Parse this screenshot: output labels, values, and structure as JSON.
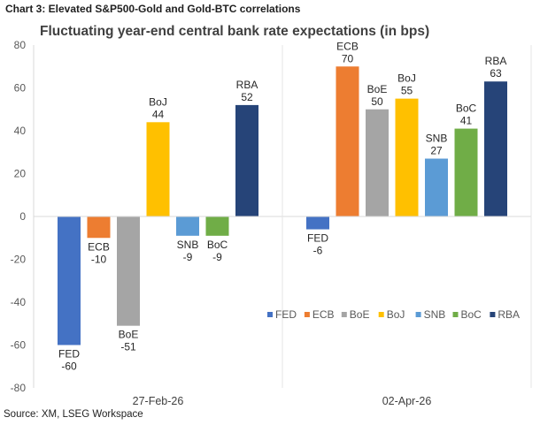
{
  "header": {
    "caption": "Chart 3: Elevated S&P500-Gold and Gold-BTC correlations"
  },
  "footer": {
    "source": "Source: XM, LSEG Workspace"
  },
  "chart_data": {
    "type": "bar",
    "title": "Fluctuating year-end central bank rate expectations (in bps)",
    "xlabel": "",
    "ylabel": "",
    "ylim": [
      -80,
      80
    ],
    "yticks": [
      80,
      60,
      40,
      20,
      0,
      -20,
      -40,
      -60,
      -80
    ],
    "grid": false,
    "legend_position": "lower-right",
    "categories": [
      "27-Feb-26",
      "02-Apr-26"
    ],
    "series": [
      {
        "name": "FED",
        "color": "#4472C4",
        "values": [
          -60,
          -6
        ]
      },
      {
        "name": "ECB",
        "color": "#ED7D31",
        "values": [
          -10,
          70
        ]
      },
      {
        "name": "BoE",
        "color": "#A5A5A5",
        "values": [
          -51,
          50
        ]
      },
      {
        "name": "BoJ",
        "color": "#FFC000",
        "values": [
          44,
          55
        ]
      },
      {
        "name": "SNB",
        "color": "#5B9BD5",
        "values": [
          -9,
          27
        ]
      },
      {
        "name": "BoC",
        "color": "#70AD47",
        "values": [
          -9,
          41
        ]
      },
      {
        "name": "RBA",
        "color": "#264478",
        "values": [
          52,
          63
        ]
      }
    ]
  }
}
